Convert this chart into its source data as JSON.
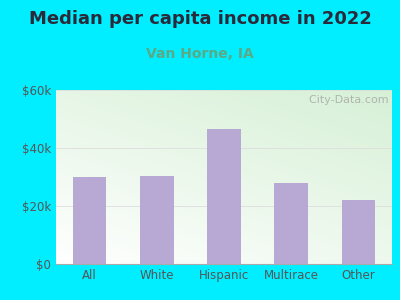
{
  "title": "Median per capita income in 2022",
  "subtitle": "Van Horne, IA",
  "categories": [
    "All",
    "White",
    "Hispanic",
    "Multirace",
    "Other"
  ],
  "values": [
    30000,
    30500,
    46500,
    28000,
    22000
  ],
  "bar_color": "#b8a9d4",
  "title_fontsize": 13,
  "subtitle_fontsize": 10,
  "subtitle_color": "#5aaa88",
  "title_color": "#2a2a3a",
  "tick_color": "#555555",
  "background_outer": "#00eeff",
  "ylim": [
    0,
    60000
  ],
  "yticks": [
    0,
    20000,
    40000,
    60000
  ],
  "ytick_labels": [
    "$0",
    "$20k",
    "$40k",
    "$60k"
  ],
  "watermark": "  City-Data.com",
  "grid_color": "#dddddd"
}
